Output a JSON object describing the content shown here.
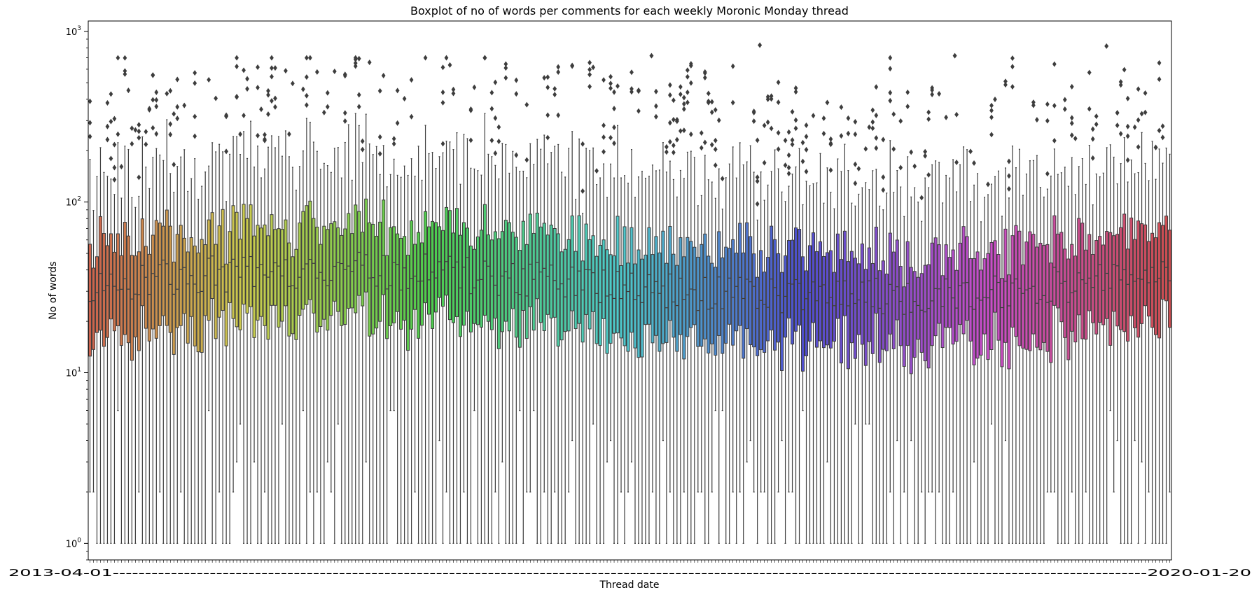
{
  "chart_data": {
    "type": "box",
    "title": "Boxplot of no of words per comments for each weekly Moronic Monday thread",
    "xlabel": "Thread date",
    "ylabel": "No of words",
    "yscale": "log",
    "ylim": [
      0.8,
      1150
    ],
    "y_ticks": [
      {
        "value": 1,
        "base": "10",
        "exp": "0"
      },
      {
        "value": 10,
        "base": "10",
        "exp": "1"
      },
      {
        "value": 100,
        "base": "10",
        "exp": "2"
      },
      {
        "value": 1000,
        "base": "10",
        "exp": "3"
      }
    ],
    "n_boxes": 310,
    "x_tick_label_first": "2013",
    "x_tick_label_last": "2020-01-20",
    "grid": false,
    "legend": "none",
    "median_summary": {
      "min_median": 20,
      "max_median": 60
    },
    "outliers_summary": {
      "typical_range": [
        150,
        500
      ],
      "max_outlier": 830
    },
    "palette": "husl"
  }
}
